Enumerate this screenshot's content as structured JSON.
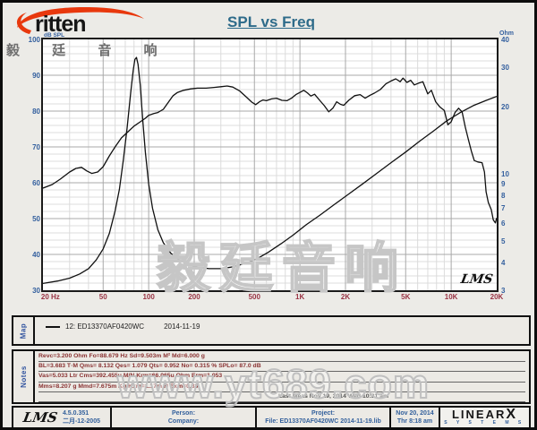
{
  "header": {
    "brand_text": "ritten",
    "brand_cjk": "毅 廷 音 响",
    "title": "SPL vs Freq"
  },
  "chart_data": {
    "type": "line",
    "title": "SPL vs Freq",
    "x_axis": {
      "scale": "log",
      "min": 20,
      "max": 20000,
      "tick_labels": [
        "20 Hz",
        "50",
        "100",
        "200",
        "500",
        "1K",
        "2K",
        "5K",
        "10K",
        "20K"
      ],
      "tick_values": [
        20,
        50,
        100,
        200,
        500,
        1000,
        2000,
        5000,
        10000,
        20000
      ]
    },
    "y_left_axis": {
      "label": "dB SPL",
      "scale": "linear",
      "min": 30,
      "max": 100,
      "tick_values": [
        100,
        90,
        80,
        70,
        60,
        50,
        40,
        30
      ]
    },
    "y_right_axis": {
      "label": "Ohm",
      "scale": "log",
      "min": 3,
      "max": 40,
      "tick_values": [
        40,
        30,
        20,
        10,
        9,
        8,
        7,
        6,
        5,
        4,
        3
      ]
    },
    "grid": true,
    "legend_position": "map-panel",
    "series": [
      {
        "name": "12: ED13370AF0420WC  2014-11-19 (SPL dB)",
        "axis": "left",
        "points": [
          [
            20,
            58.5
          ],
          [
            23,
            59.5
          ],
          [
            26,
            61
          ],
          [
            30,
            63
          ],
          [
            33,
            64
          ],
          [
            36,
            64.3
          ],
          [
            39,
            63.3
          ],
          [
            42,
            62.6
          ],
          [
            46,
            63
          ],
          [
            50,
            64.5
          ],
          [
            55,
            67.5
          ],
          [
            60,
            70
          ],
          [
            66,
            72.5
          ],
          [
            72,
            74
          ],
          [
            80,
            75.8
          ],
          [
            88,
            77
          ],
          [
            95,
            78
          ],
          [
            100,
            78.8
          ],
          [
            108,
            79.3
          ],
          [
            115,
            79.6
          ],
          [
            125,
            80.5
          ],
          [
            135,
            82.5
          ],
          [
            145,
            84.3
          ],
          [
            155,
            85.2
          ],
          [
            170,
            85.8
          ],
          [
            190,
            86.2
          ],
          [
            210,
            86.4
          ],
          [
            240,
            86.4
          ],
          [
            270,
            86.6
          ],
          [
            300,
            86.8
          ],
          [
            330,
            87
          ],
          [
            360,
            86.7
          ],
          [
            400,
            85.6
          ],
          [
            440,
            84
          ],
          [
            480,
            82.5
          ],
          [
            510,
            81.8
          ],
          [
            540,
            82.6
          ],
          [
            570,
            83.1
          ],
          [
            600,
            82.9
          ],
          [
            650,
            83.4
          ],
          [
            700,
            83.6
          ],
          [
            760,
            83
          ],
          [
            820,
            82.9
          ],
          [
            880,
            83.6
          ],
          [
            940,
            84.6
          ],
          [
            1000,
            85.2
          ],
          [
            1060,
            85.8
          ],
          [
            1120,
            85.1
          ],
          [
            1180,
            84.2
          ],
          [
            1250,
            84.7
          ],
          [
            1350,
            83
          ],
          [
            1450,
            81.5
          ],
          [
            1550,
            79.8
          ],
          [
            1650,
            80.8
          ],
          [
            1750,
            82.6
          ],
          [
            1850,
            81.9
          ],
          [
            1950,
            81.6
          ],
          [
            2100,
            83
          ],
          [
            2300,
            84.3
          ],
          [
            2500,
            84.6
          ],
          [
            2700,
            83.6
          ],
          [
            2900,
            84.4
          ],
          [
            3100,
            85
          ],
          [
            3400,
            86
          ],
          [
            3700,
            87.6
          ],
          [
            4000,
            88.4
          ],
          [
            4300,
            89
          ],
          [
            4600,
            88.2
          ],
          [
            4800,
            89.2
          ],
          [
            5100,
            88
          ],
          [
            5400,
            88.6
          ],
          [
            5700,
            87.3
          ],
          [
            6100,
            87.8
          ],
          [
            6500,
            88.2
          ],
          [
            7000,
            84.8
          ],
          [
            7400,
            85.8
          ],
          [
            7900,
            82.6
          ],
          [
            8400,
            81.2
          ],
          [
            9000,
            80.2
          ],
          [
            9500,
            76.2
          ],
          [
            10000,
            77
          ],
          [
            10600,
            79.6
          ],
          [
            11200,
            80.8
          ],
          [
            11800,
            79.8
          ],
          [
            12400,
            75.5
          ],
          [
            13000,
            72
          ],
          [
            13600,
            68.8
          ],
          [
            14200,
            66.2
          ],
          [
            15000,
            65.8
          ],
          [
            16000,
            65.6
          ],
          [
            16600,
            63
          ],
          [
            17000,
            57.5
          ],
          [
            17600,
            54.5
          ],
          [
            18400,
            52.5
          ],
          [
            19000,
            49.6
          ],
          [
            19600,
            48.8
          ],
          [
            20000,
            50.2
          ]
        ]
      },
      {
        "name": "Impedance (Ohm)",
        "axis": "right",
        "points": [
          [
            20,
            3.22
          ],
          [
            25,
            3.3
          ],
          [
            30,
            3.4
          ],
          [
            35,
            3.55
          ],
          [
            40,
            3.75
          ],
          [
            45,
            4.1
          ],
          [
            50,
            4.6
          ],
          [
            55,
            5.4
          ],
          [
            60,
            6.8
          ],
          [
            64,
            8.5
          ],
          [
            68,
            11.5
          ],
          [
            72,
            16
          ],
          [
            76,
            23
          ],
          [
            79,
            29
          ],
          [
            81,
            32.5
          ],
          [
            83,
            33.2
          ],
          [
            85,
            31
          ],
          [
            88,
            25
          ],
          [
            91,
            18
          ],
          [
            95,
            12.5
          ],
          [
            100,
            9
          ],
          [
            106,
            7
          ],
          [
            115,
            5.6
          ],
          [
            125,
            4.9
          ],
          [
            140,
            4.4
          ],
          [
            160,
            4.1
          ],
          [
            185,
            3.9
          ],
          [
            215,
            3.8
          ],
          [
            250,
            3.75
          ],
          [
            300,
            3.75
          ],
          [
            360,
            3.82
          ],
          [
            430,
            3.95
          ],
          [
            520,
            4.15
          ],
          [
            620,
            4.45
          ],
          [
            750,
            4.85
          ],
          [
            900,
            5.3
          ],
          [
            1100,
            5.9
          ],
          [
            1350,
            6.5
          ],
          [
            1700,
            7.3
          ],
          [
            2100,
            8.1
          ],
          [
            2600,
            9
          ],
          [
            3200,
            10
          ],
          [
            4000,
            11.2
          ],
          [
            5000,
            12.5
          ],
          [
            6200,
            14
          ],
          [
            7600,
            15.5
          ],
          [
            9300,
            17.2
          ],
          [
            11500,
            18.8
          ],
          [
            14000,
            20.2
          ],
          [
            17000,
            21.3
          ],
          [
            20000,
            22.2
          ]
        ]
      }
    ]
  },
  "chart_overlays": {
    "lms_logo": "LMS",
    "watermark_cjk": "毅廷音响",
    "watermark_url": "www.yt689.com"
  },
  "map_panel": {
    "label": "Map",
    "legend_text": "12: ED13370AF0420WC",
    "legend_date": "2014-11-19"
  },
  "notes_panel": {
    "label": "Notes",
    "lines": [
      "Revc=3.200 Ohm  Fo=88.679 Hz  Sd=9.503m M²  Md=6.000 g",
      "BL=3.683 T·M  Qms= 8.132  Qes= 1.079  Qts= 0.952  No= 0.315 %  SPLo= 87.0 dB",
      "Vas=5.033 Ltr  Cms=392.455u M/N  Krm=66.065u Ohm  Erm=1.053",
      "Mms=8.207 g  Mmd=7.675m Kg  Kxm=1.17m H  Exm=0.83"
    ],
    "meas_line": "Last Meas  Nov 19, 2014  Wed 10:31 am"
  },
  "footer": {
    "lms": "LMS",
    "version": "4.5.0.351",
    "version_date": "二月-12-2005",
    "person_label": "Person:",
    "company_label": "Company:",
    "project_label": "Project:",
    "file_label": "File: ED13370AF0420WC   2014-11-19.lib",
    "date": "Nov 20, 2014",
    "time": "Thr  8:18 am",
    "brand": "LINEAR",
    "brand_x": "X",
    "brand_sub": "S Y S T E M S"
  },
  "colors": {
    "page_bg": "#ecebe7",
    "title": "#2e6b8a",
    "axis_blue": "#335f9e",
    "freq_red": "#993344",
    "notes_red": "#8a3333",
    "footer_blue": "#33609c",
    "logo_red": "#e8380d",
    "curve": "#101010"
  }
}
